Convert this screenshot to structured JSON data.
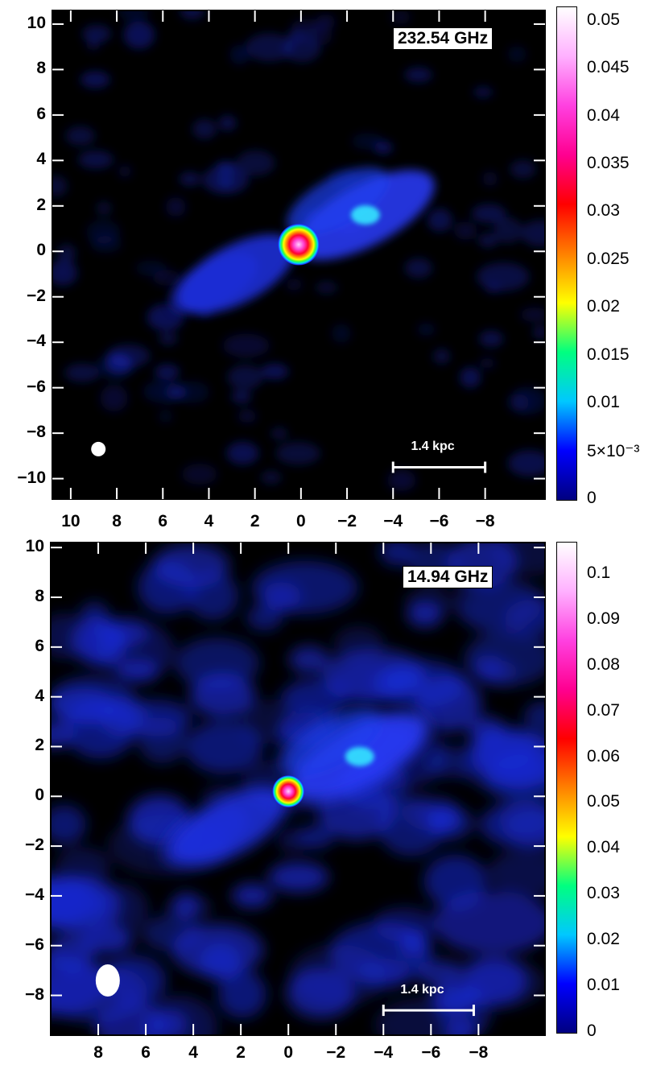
{
  "chart_data": [
    {
      "type": "heatmap",
      "frequency_label": "232.54 GHz",
      "x_ticks": [
        "10",
        "8",
        "6",
        "4",
        "2",
        "0",
        "−2",
        "−4",
        "−6",
        "−8"
      ],
      "y_ticks": [
        "10",
        "8",
        "6",
        "4",
        "2",
        "0",
        "−2",
        "−4",
        "−6",
        "−8",
        "−10"
      ],
      "xlim": [
        10.8,
        -10.6
      ],
      "ylim": [
        -10.9,
        10.6
      ],
      "colorbar": {
        "range": [
          0,
          0.0515
        ],
        "ticks": [
          "0",
          "5×10⁻³",
          "0.01",
          "0.015",
          "0.02",
          "0.025",
          "0.03",
          "0.035",
          "0.04",
          "0.045",
          "0.05"
        ],
        "tick_values": [
          0,
          0.005,
          0.01,
          0.015,
          0.02,
          0.025,
          0.03,
          0.035,
          0.04,
          0.045,
          0.05
        ]
      },
      "scale_bar_label": "1.4 kpc",
      "scale_bar_x_range": [
        -4,
        -8
      ],
      "scale_bar_y": -9.5,
      "beam_center": [
        8.8,
        -8.7
      ],
      "core_position": [
        0.1,
        0.3
      ],
      "features": {
        "jet_ne_peak": [
          -2.8,
          1.6
        ],
        "jet_sw_peak": [
          2.8,
          -1.0
        ]
      }
    },
    {
      "type": "heatmap",
      "frequency_label": "14.94 GHz",
      "x_ticks": [
        "8",
        "6",
        "4",
        "2",
        "0",
        "−2",
        "−4",
        "−6",
        "−8"
      ],
      "y_ticks": [
        "10",
        "8",
        "6",
        "4",
        "2",
        "0",
        "−2",
        "−4",
        "−6",
        "−8"
      ],
      "xlim": [
        10.0,
        -10.8
      ],
      "ylim": [
        -9.6,
        10.2
      ],
      "colorbar": {
        "range": [
          0,
          0.107
        ],
        "ticks": [
          "0",
          "0.01",
          "0.02",
          "0.03",
          "0.04",
          "0.05",
          "0.06",
          "0.07",
          "0.08",
          "0.09",
          "0.1"
        ],
        "tick_values": [
          0,
          0.01,
          0.02,
          0.03,
          0.04,
          0.05,
          0.06,
          0.07,
          0.08,
          0.09,
          0.1
        ]
      },
      "scale_bar_label": "1.4 kpc",
      "scale_bar_x_range": [
        -4,
        -7.8
      ],
      "scale_bar_y": -8.6,
      "beam_center": [
        7.6,
        -7.4
      ],
      "core_position": [
        0.0,
        0.2
      ],
      "features": {
        "jet_ne_peak": [
          -3.0,
          1.6
        ],
        "jet_sw_peak": [
          2.5,
          -1.2
        ]
      }
    }
  ],
  "colors": {
    "background": "#000000",
    "colormap": [
      "#000000",
      "#0000c8",
      "#00d8ff",
      "#00ff40",
      "#ffff00",
      "#ff8000",
      "#ff0000",
      "#ff00a0",
      "#ff80ff",
      "#ffffff"
    ]
  }
}
